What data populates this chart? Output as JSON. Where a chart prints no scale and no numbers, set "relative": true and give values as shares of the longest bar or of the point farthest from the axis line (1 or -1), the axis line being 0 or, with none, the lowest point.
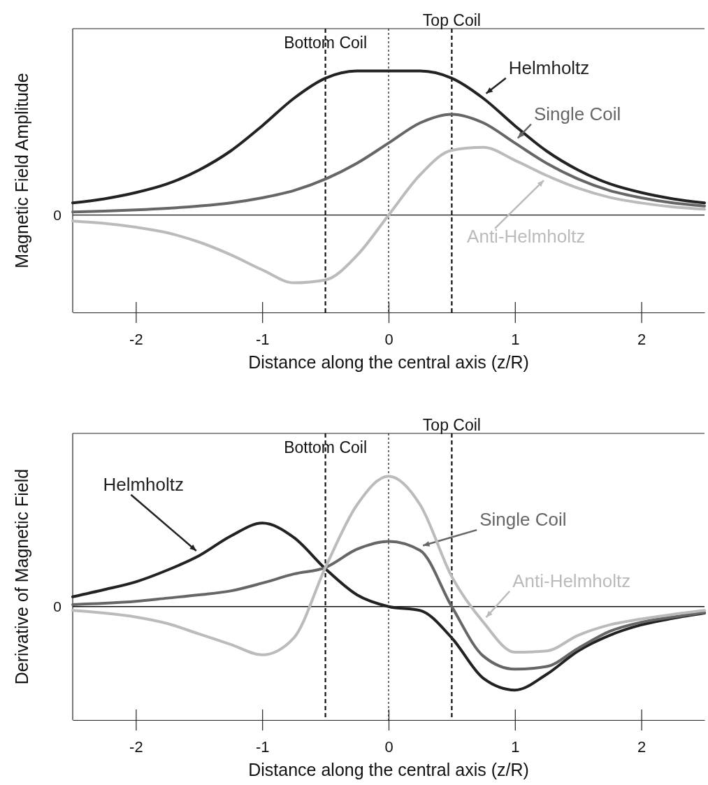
{
  "chart_data": [
    {
      "type": "line",
      "relative": true,
      "ylabel": "Magnetic Field Amplitude",
      "xlabel": "Distance along the central axis (z/R)",
      "x": [
        -2.5,
        -2.25,
        -2,
        -1.75,
        -1.5,
        -1.25,
        -1,
        -0.75,
        -0.5,
        -0.25,
        0,
        0.25,
        0.5,
        0.75,
        1,
        1.25,
        1.5,
        1.75,
        2,
        2.25,
        2.5
      ],
      "xlim": [
        -2.5,
        2.5
      ],
      "xticks": [
        -2,
        -1,
        0,
        1,
        2
      ],
      "series": [
        {
          "name": "Helmholtz",
          "color": "#222222",
          "values": [
            0.085,
            0.113,
            0.156,
            0.217,
            0.313,
            0.445,
            0.62,
            0.81,
            0.95,
            1.0,
            1.0,
            1.0,
            0.95,
            0.81,
            0.62,
            0.445,
            0.313,
            0.217,
            0.156,
            0.113,
            0.085
          ]
        },
        {
          "name": "Single Coil",
          "color": "#666666",
          "values": [
            0.022,
            0.028,
            0.036,
            0.047,
            0.063,
            0.085,
            0.12,
            0.17,
            0.25,
            0.36,
            0.5,
            0.64,
            0.7,
            0.64,
            0.5,
            0.36,
            0.25,
            0.17,
            0.12,
            0.085,
            0.063
          ]
        },
        {
          "name": "Anti-Helmholtz",
          "color": "#bbbbbb",
          "values": [
            -0.041,
            -0.057,
            -0.084,
            -0.123,
            -0.187,
            -0.275,
            -0.38,
            -0.47,
            -0.45,
            -0.28,
            0,
            0.28,
            0.45,
            0.47,
            0.38,
            0.275,
            0.187,
            0.123,
            0.084,
            0.057,
            0.041
          ]
        }
      ],
      "ref_lines": [
        {
          "axis": "x",
          "value": -0.5,
          "label": "Bottom Coil",
          "line_style": "dashed",
          "color": "#111111"
        },
        {
          "axis": "x",
          "value": 0,
          "line_style": "dotted",
          "color": "#111111"
        },
        {
          "axis": "x",
          "value": 0.5,
          "label": "Top Coil",
          "line_style": "dashed",
          "color": "#111111"
        }
      ],
      "annotations": [
        "0"
      ],
      "grid": false,
      "legend": false,
      "marker": "none",
      "line_style": "solid"
    },
    {
      "type": "line",
      "relative": true,
      "ylabel": "Derivative of Magnetic Field",
      "xlabel": "Distance along the central axis (z/R)",
      "x": [
        -2.5,
        -2.25,
        -2,
        -1.75,
        -1.5,
        -1.25,
        -1,
        -0.75,
        -0.5,
        -0.25,
        0,
        0.25,
        0.5,
        0.75,
        1,
        1.25,
        1.5,
        1.75,
        2,
        2.25,
        2.5
      ],
      "xlim": [
        -2.5,
        2.5
      ],
      "xticks": [
        -2,
        -1,
        0,
        1,
        2
      ],
      "series": [
        {
          "name": "Helmholtz",
          "color": "#222222",
          "values": [
            0.075,
            0.13,
            0.19,
            0.28,
            0.39,
            0.54,
            0.64,
            0.53,
            0.29,
            0.09,
            0,
            -0.03,
            -0.24,
            -0.55,
            -0.64,
            -0.52,
            -0.34,
            -0.22,
            -0.14,
            -0.09,
            -0.05
          ]
        },
        {
          "name": "Single Coil",
          "color": "#666666",
          "values": [
            0.015,
            0.025,
            0.04,
            0.065,
            0.09,
            0.12,
            0.18,
            0.25,
            0.3,
            0.44,
            0.5,
            0.43,
            0,
            -0.38,
            -0.48,
            -0.46,
            -0.32,
            -0.19,
            -0.12,
            -0.08,
            -0.045
          ]
        },
        {
          "name": "Anti-Helmholtz",
          "color": "#bbbbbb",
          "values": [
            -0.03,
            -0.05,
            -0.08,
            -0.13,
            -0.21,
            -0.29,
            -0.37,
            -0.24,
            0.3,
            0.78,
            1,
            0.78,
            0.23,
            -0.12,
            -0.35,
            -0.34,
            -0.22,
            -0.14,
            -0.095,
            -0.06,
            -0.03
          ]
        }
      ],
      "ref_lines": [
        {
          "axis": "x",
          "value": -0.5,
          "label": "Bottom Coil",
          "line_style": "dashed",
          "color": "#111111"
        },
        {
          "axis": "x",
          "value": 0,
          "line_style": "dotted",
          "color": "#111111"
        },
        {
          "axis": "x",
          "value": 0.5,
          "label": "Top Coil",
          "line_style": "dashed",
          "color": "#111111"
        }
      ],
      "annotations": [
        "0"
      ],
      "grid": false,
      "legend": false,
      "marker": "none",
      "line_style": "solid"
    }
  ]
}
